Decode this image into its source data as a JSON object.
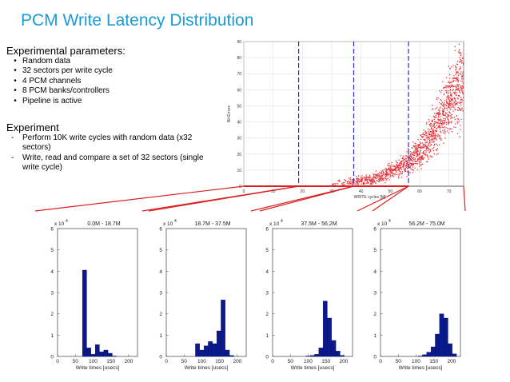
{
  "title": "PCM Write Latency Distribution",
  "params": {
    "heading": "Experimental parameters:",
    "items": [
      "Random data",
      "32 sectors per write cycle",
      "4 PCM channels",
      "8 PCM banks/controllers",
      "Pipeline is active"
    ]
  },
  "experiment": {
    "heading": "Experiment",
    "items": [
      "Perform 10K write cycles with random data (x32 sectors)",
      "Write, read and compare a set of 32 sectors (single write cycle)"
    ]
  },
  "colors": {
    "title": "#1a9ad6",
    "scatter": "#e8323a",
    "bars": "#0a1a8c",
    "connector": "#d92020",
    "divider": "#2a2ad0"
  },
  "chart_data": [
    {
      "type": "scatter",
      "xlabel": "WRITE cycles [M]",
      "ylabel": "Bit Errors",
      "xlim": [
        0,
        75
      ],
      "ylim": [
        0,
        90
      ],
      "xticks": [
        "0",
        "10",
        "20",
        "30",
        "40",
        "50",
        "60",
        "70"
      ],
      "yticks": [
        "0",
        "10",
        "20",
        "30",
        "40",
        "50",
        "60",
        "70",
        "80",
        "90"
      ],
      "divider_lines_x": [
        18.7,
        37.5,
        56.2
      ],
      "trend": {
        "x": [
          0,
          20,
          35,
          45,
          55,
          62,
          68,
          75
        ],
        "y": [
          0,
          0.5,
          2,
          5,
          13,
          25,
          45,
          68
        ]
      },
      "grid": true
    },
    {
      "type": "bar",
      "title": "0.0M - 18.7M",
      "exponent": "x 10",
      "exponent_power": "4",
      "xlabel": "Write times [usecs]",
      "xlim": [
        0,
        225
      ],
      "ylim": [
        0,
        6
      ],
      "xticks": [
        "0",
        "50",
        "100",
        "150",
        "200"
      ],
      "yticks": [
        "0",
        "1",
        "2",
        "3",
        "4",
        "5",
        "6"
      ],
      "bin_width": 12,
      "bins_x": [
        70,
        82,
        94,
        106,
        118,
        130,
        142,
        154
      ],
      "values": [
        4.05,
        0.4,
        0.1,
        0.55,
        0.22,
        0.3,
        0.15,
        0.02
      ]
    },
    {
      "type": "bar",
      "title": "18.7M - 37.5M",
      "exponent": "x 10",
      "exponent_power": "4",
      "xlabel": "Write times [usecs]",
      "xlim": [
        0,
        225
      ],
      "ylim": [
        0,
        6
      ],
      "xticks": [
        "0",
        "50",
        "100",
        "150",
        "200"
      ],
      "yticks": [
        "0",
        "1",
        "2",
        "3",
        "4",
        "5",
        "6"
      ],
      "bin_width": 12,
      "bins_x": [
        82,
        94,
        106,
        118,
        130,
        142,
        154,
        166,
        178
      ],
      "values": [
        0.6,
        0.3,
        0.5,
        0.7,
        0.6,
        1.2,
        2.65,
        0.3,
        0.05
      ]
    },
    {
      "type": "bar",
      "title": "37.5M - 56.2M",
      "exponent": "x 10",
      "exponent_power": "4",
      "xlabel": "Write times [usecs]",
      "xlim": [
        0,
        225
      ],
      "ylim": [
        0,
        6
      ],
      "xticks": [
        "0",
        "50",
        "100",
        "150",
        "200"
      ],
      "yticks": [
        "0",
        "1",
        "2",
        "3",
        "4",
        "5",
        "6"
      ],
      "bin_width": 12,
      "bins_x": [
        94,
        106,
        118,
        130,
        142,
        154,
        166,
        178,
        190
      ],
      "values": [
        0.02,
        0.05,
        0.1,
        0.4,
        2.6,
        1.8,
        0.75,
        0.25,
        0.05
      ]
    },
    {
      "type": "bar",
      "title": "56.2M - 75.0M",
      "exponent": "x 10",
      "exponent_power": "4",
      "xlabel": "Write times [usecs]",
      "xlim": [
        0,
        225
      ],
      "ylim": [
        0,
        6
      ],
      "xticks": [
        "0",
        "50",
        "100",
        "150",
        "200"
      ],
      "yticks": [
        "0",
        "1",
        "2",
        "3",
        "4",
        "5",
        "6"
      ],
      "bin_width": 12,
      "bins_x": [
        106,
        118,
        130,
        142,
        154,
        166,
        178,
        190,
        202
      ],
      "values": [
        0.02,
        0.08,
        0.2,
        0.45,
        1.05,
        2.0,
        1.8,
        0.6,
        0.12
      ]
    }
  ]
}
